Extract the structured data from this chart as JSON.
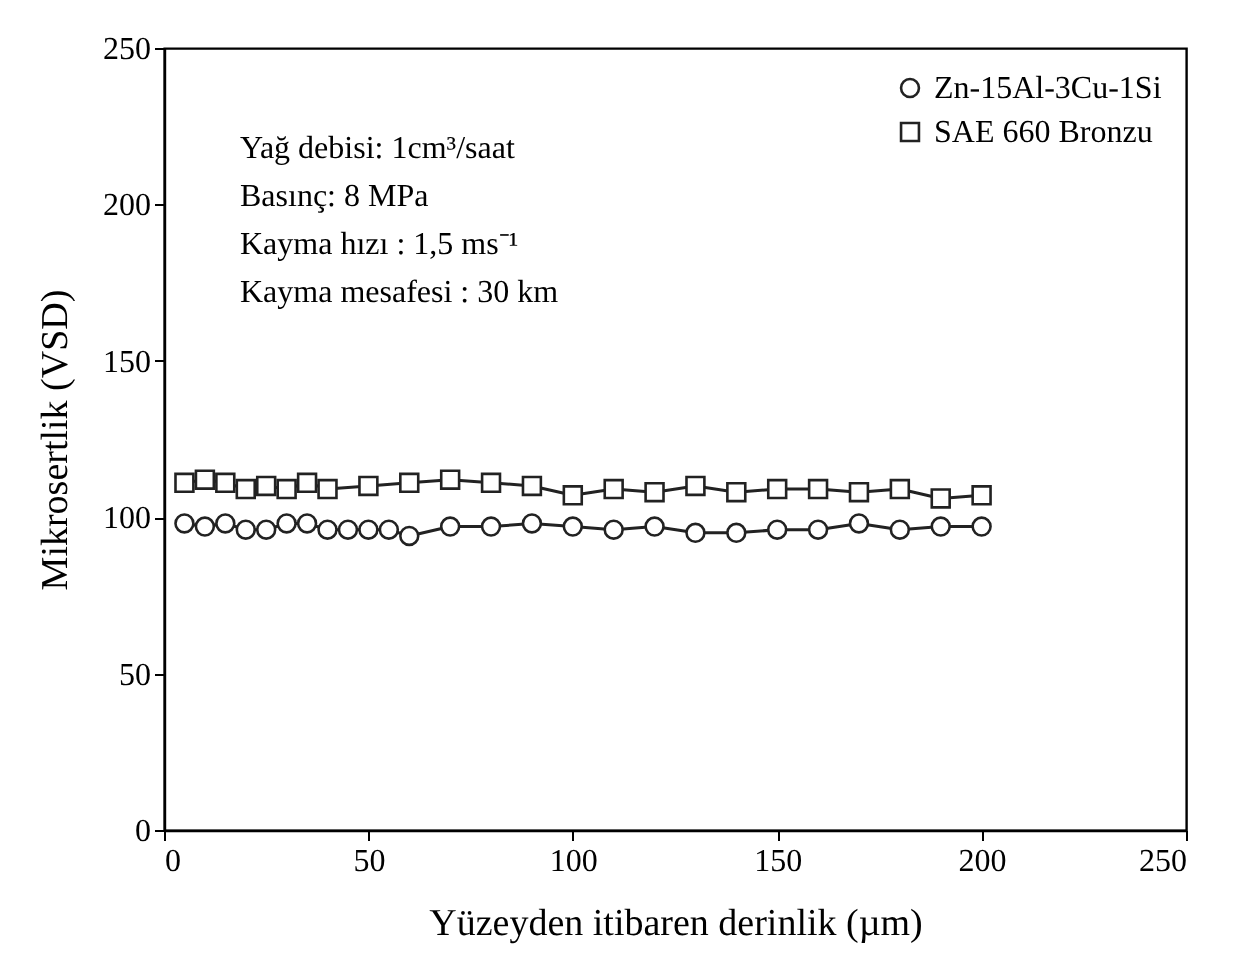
{
  "chart_data": {
    "type": "line",
    "xlabel": "Yüzeyden itibaren derinlik (µm)",
    "ylabel": "Mikrosertlik (VSD)",
    "xlim": [
      0,
      250
    ],
    "xticks": [
      0,
      50,
      100,
      150,
      200,
      250
    ],
    "ylim": [
      0,
      250
    ],
    "yticks": [
      0,
      50,
      100,
      150,
      200,
      250
    ],
    "legend": "top right",
    "line_style": "solid",
    "grid": false,
    "annotations": [
      "Yağ debisi: 1cm³/saat",
      "Basınç: 8 MPa",
      "Kayma hızı   : 1,5 ms⁻¹",
      "Kayma mesafesi : 30 km"
    ],
    "series": [
      {
        "name": "Zn-15Al-3Cu-1Si",
        "color": "#222222",
        "marker": "circle",
        "x": [
          5,
          10,
          15,
          20,
          25,
          30,
          35,
          40,
          45,
          50,
          55,
          60,
          70,
          80,
          90,
          100,
          110,
          120,
          130,
          140,
          150,
          160,
          170,
          180,
          190,
          200
        ],
        "values": [
          98,
          97,
          98,
          96,
          96,
          98,
          98,
          96,
          96,
          96,
          96,
          94,
          97,
          97,
          98,
          97,
          96,
          97,
          95,
          95,
          96,
          96,
          98,
          96,
          97,
          97
        ]
      },
      {
        "name": "SAE 660 Bronzu",
        "color": "#222222",
        "marker": "square",
        "x": [
          5,
          10,
          15,
          20,
          25,
          30,
          35,
          40,
          50,
          60,
          70,
          80,
          90,
          100,
          110,
          120,
          130,
          140,
          150,
          160,
          170,
          180,
          190,
          200
        ],
        "values": [
          111,
          112,
          111,
          109,
          110,
          109,
          111,
          109,
          110,
          111,
          112,
          111,
          110,
          107,
          109,
          108,
          110,
          108,
          109,
          109,
          108,
          109,
          106,
          107
        ]
      }
    ]
  }
}
